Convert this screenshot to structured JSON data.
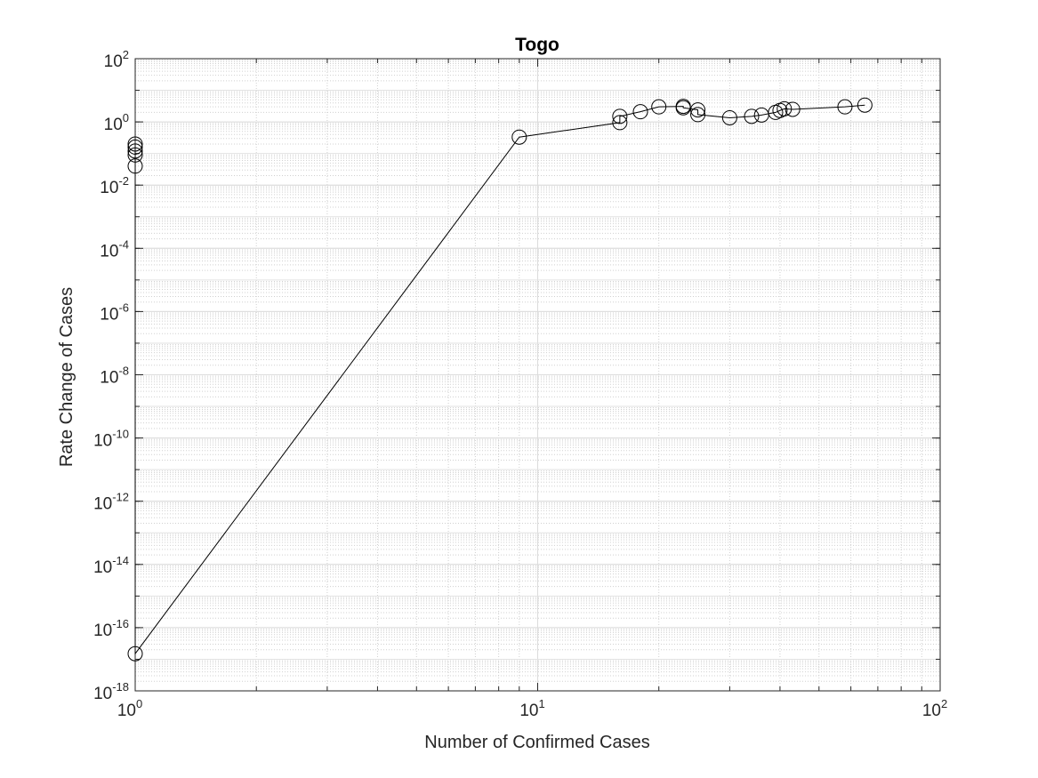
{
  "chart_data": {
    "type": "line",
    "title": "Togo",
    "xlabel": "Number of Confirmed Cases",
    "ylabel": "Rate Change of Cases",
    "xscale": "log",
    "yscale": "log",
    "xlim": [
      1,
      100
    ],
    "ylim": [
      1e-18,
      100
    ],
    "grid": true,
    "minor_grid": true,
    "line_color": "#000000",
    "marker": "circle",
    "x_ticks": [
      {
        "base": "10",
        "exp": "0",
        "value": 1
      },
      {
        "base": "10",
        "exp": "1",
        "value": 10
      },
      {
        "base": "10",
        "exp": "2",
        "value": 100
      }
    ],
    "y_ticks": [
      {
        "base": "10",
        "exp": "-18",
        "value": 1e-18
      },
      {
        "base": "10",
        "exp": "-16",
        "value": 1e-16
      },
      {
        "base": "10",
        "exp": "-14",
        "value": 1e-14
      },
      {
        "base": "10",
        "exp": "-12",
        "value": 1e-12
      },
      {
        "base": "10",
        "exp": "-10",
        "value": 1e-10
      },
      {
        "base": "10",
        "exp": "-8",
        "value": 1e-08
      },
      {
        "base": "10",
        "exp": "-6",
        "value": 1e-06
      },
      {
        "base": "10",
        "exp": "-4",
        "value": 0.0001
      },
      {
        "base": "10",
        "exp": "-2",
        "value": 0.01
      },
      {
        "base": "10",
        "exp": "0",
        "value": 1
      },
      {
        "base": "10",
        "exp": "2",
        "value": 100
      }
    ],
    "series": [
      {
        "x": [
          1,
          1,
          1,
          1,
          1,
          1,
          9,
          16,
          16,
          18,
          20,
          23,
          23,
          25,
          25,
          30,
          34,
          36,
          39,
          40,
          41,
          43,
          58,
          65
        ],
        "y": [
          0.04,
          0.09,
          0.12,
          0.16,
          0.2,
          1.5e-17,
          0.33,
          0.95,
          1.5,
          2.1,
          3.0,
          3.1,
          2.8,
          2.4,
          1.7,
          1.35,
          1.5,
          1.65,
          2.0,
          2.3,
          2.6,
          2.5,
          3.0,
          3.4
        ]
      }
    ]
  }
}
